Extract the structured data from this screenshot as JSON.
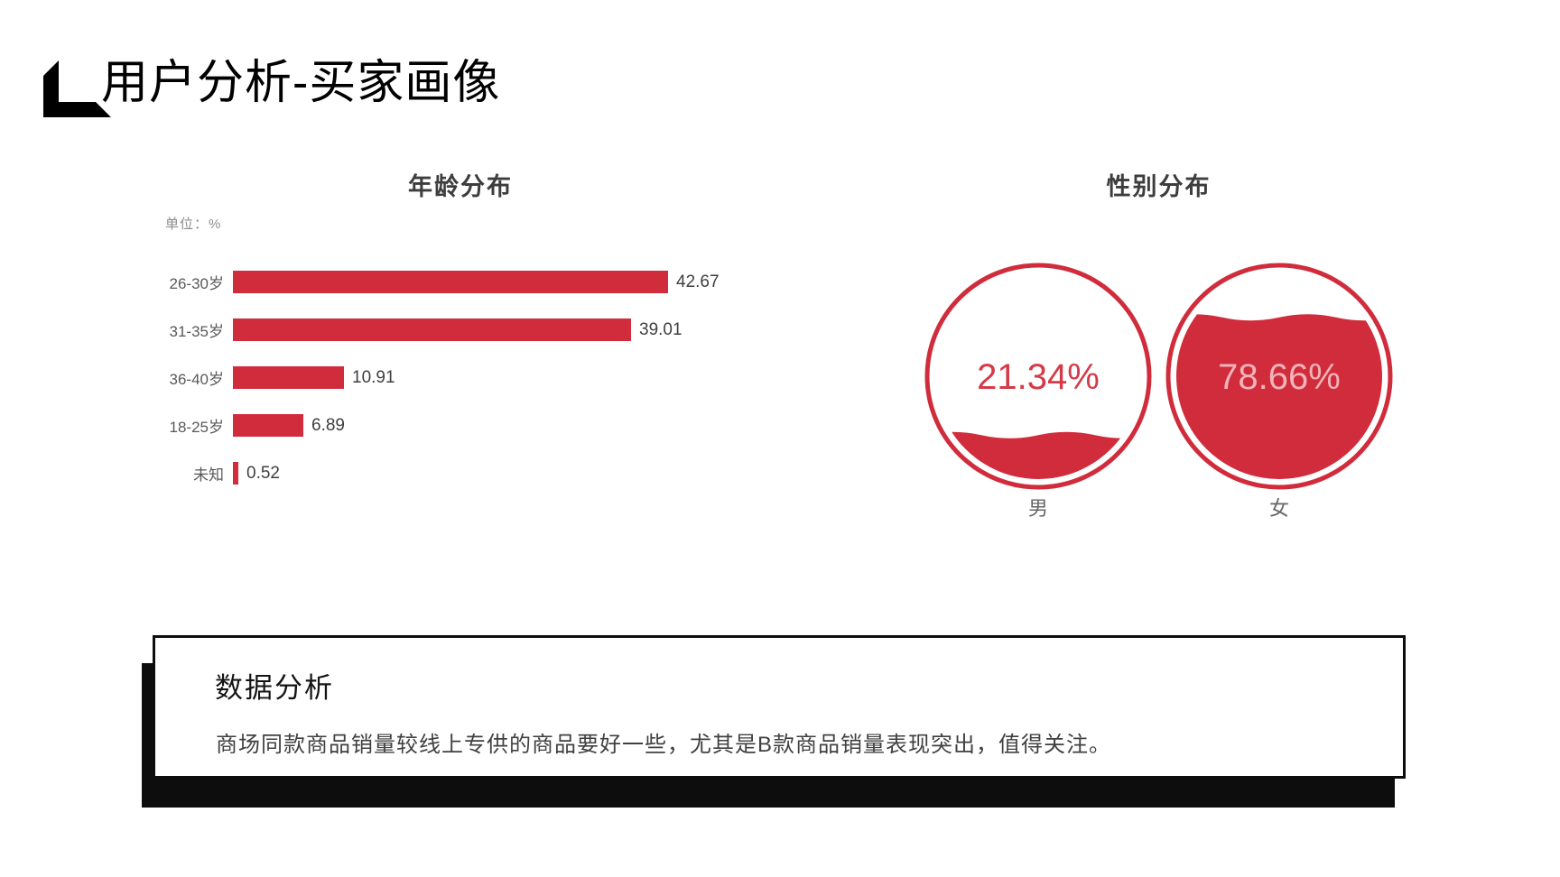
{
  "header": {
    "title": "用户分析-买家画像"
  },
  "colors": {
    "accent_red": "#D02C3C",
    "female_text_pink": "#F3B3BA",
    "male_text_red": "#D43A48",
    "shadow_black": "#0d0d0d"
  },
  "age_chart": {
    "title": "年龄分布",
    "unit_note": "单位：%"
  },
  "gender_chart": {
    "title": "性别分布",
    "male_label": "男",
    "female_label": "女",
    "male_value_text": "21.34%",
    "female_value_text": "78.66%"
  },
  "analysis": {
    "heading": "数据分析",
    "body": "商场同款商品销量较线上专供的商品要好一些，尤其是B款商品销量表现突出，值得关注。"
  },
  "chart_data": [
    {
      "type": "bar",
      "orientation": "horizontal",
      "title": "年龄分布",
      "unit": "单位：%",
      "categories": [
        "26-30岁",
        "31-35岁",
        "36-40岁",
        "18-25岁",
        "未知"
      ],
      "values": [
        42.67,
        39.01,
        10.91,
        6.89,
        0.52
      ],
      "value_labels": [
        "42.67",
        "39.01",
        "10.91",
        "6.89",
        "0.52"
      ],
      "xlim": [
        0,
        45
      ],
      "bar_color": "#D02C3C",
      "grid": false,
      "legend": "none"
    },
    {
      "type": "pie",
      "style": "liquid_fill_gauges",
      "title": "性别分布",
      "categories": [
        "男",
        "女"
      ],
      "values": [
        21.34,
        78.66
      ],
      "value_labels": [
        "21.34%",
        "78.66%"
      ],
      "gauge_color": "#D02C3C",
      "legend": "labels-below-gauges"
    }
  ]
}
